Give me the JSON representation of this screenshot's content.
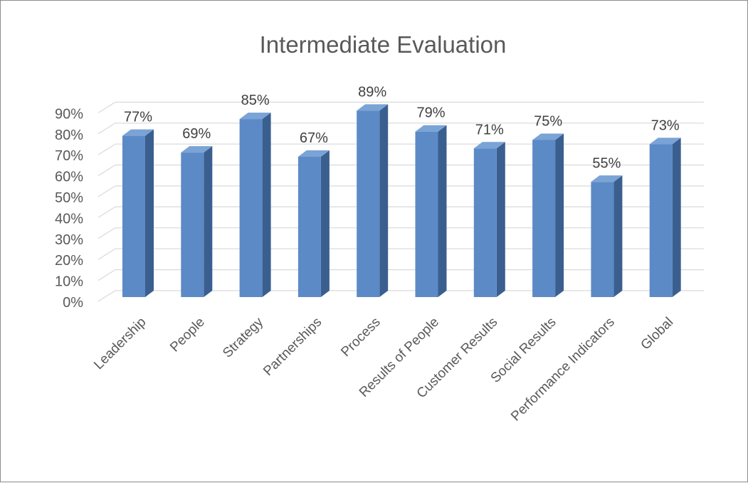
{
  "chart_data": {
    "type": "bar",
    "title": "Intermediate Evaluation",
    "xlabel": "",
    "ylabel": "",
    "categories": [
      "Leadership",
      "People",
      "Strategy",
      "Partnerships",
      "Process",
      "Results of People",
      "Customer Results",
      "Social Results",
      "Performance Indicators",
      "Global"
    ],
    "values": [
      77,
      69,
      85,
      67,
      89,
      79,
      71,
      75,
      55,
      73
    ],
    "value_labels": [
      "77%",
      "69%",
      "85%",
      "67%",
      "89%",
      "79%",
      "71%",
      "75%",
      "55%",
      "73%"
    ],
    "ylim": [
      0,
      90
    ],
    "y_ticks": [
      0,
      10,
      20,
      30,
      40,
      50,
      60,
      70,
      80,
      90
    ],
    "y_tick_labels": [
      "0%",
      "10%",
      "20%",
      "30%",
      "40%",
      "50%",
      "60%",
      "70%",
      "80%",
      "90%"
    ],
    "grid": true,
    "legend": "none",
    "style": "3d-column",
    "colors": {
      "bar_front": "#5b8ac6",
      "bar_side": "#3a5f8f",
      "bar_top": "#7aa3d6",
      "grid": "#d9d9d9",
      "text": "#595959"
    }
  }
}
